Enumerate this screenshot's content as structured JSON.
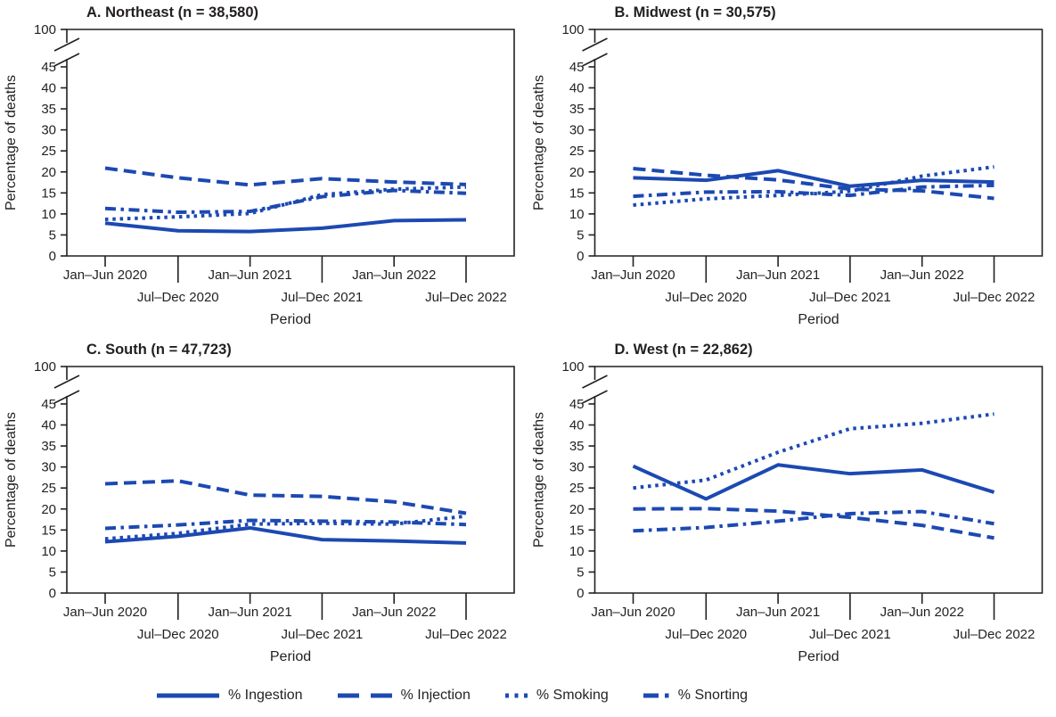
{
  "figure": {
    "line_color": "#1c49b2",
    "axis_color": "#231f20",
    "legend": [
      {
        "label": "% Ingestion",
        "style": "solid"
      },
      {
        "label": "% Injection",
        "style": "dashed"
      },
      {
        "label": "% Smoking",
        "style": "dotted"
      },
      {
        "label": "% Snorting",
        "style": "dashdot"
      }
    ]
  },
  "axis": {
    "ylabel": "Percentage of deaths",
    "xlabel": "Period",
    "yticks": [
      0,
      5,
      10,
      15,
      20,
      25,
      30,
      35,
      40,
      45
    ],
    "ybreak_top_label": 100,
    "y_axis_break": true
  },
  "chart_data": [
    {
      "type": "line",
      "title": "A. Northeast (n = 38,580)",
      "categories": [
        "Jan–Jun 2020",
        "Jul–Dec 2020",
        "Jan–Jun 2021",
        "Jul–Dec 2021",
        "Jan–Jun 2022",
        "Jul–Dec 2022"
      ],
      "ylim": [
        0,
        100
      ],
      "series": [
        {
          "name": "% Ingestion",
          "style": "solid",
          "values": [
            7.8,
            6.0,
            5.8,
            6.6,
            8.4,
            8.6
          ]
        },
        {
          "name": "% Injection",
          "style": "dashed",
          "values": [
            20.9,
            18.6,
            16.9,
            18.4,
            17.6,
            17.0
          ]
        },
        {
          "name": "% Smoking",
          "style": "dotted",
          "values": [
            8.7,
            9.3,
            10.1,
            14.6,
            15.9,
            16.4
          ]
        },
        {
          "name": "% Snorting",
          "style": "dashdot",
          "values": [
            11.3,
            10.4,
            10.6,
            14.1,
            15.6,
            14.9
          ]
        }
      ]
    },
    {
      "type": "line",
      "title": "B. Midwest  (n = 30,575)",
      "categories": [
        "Jan–Jun 2020",
        "Jul–Dec 2020",
        "Jan–Jun 2021",
        "Jul–Dec 2021",
        "Jan–Jun 2022",
        "Jul–Dec 2022"
      ],
      "ylim": [
        0,
        100
      ],
      "series": [
        {
          "name": "% Ingestion",
          "style": "solid",
          "values": [
            18.6,
            18.0,
            20.3,
            16.6,
            18.0,
            17.6
          ]
        },
        {
          "name": "% Injection",
          "style": "dashed",
          "values": [
            20.8,
            19.2,
            18.1,
            15.9,
            15.5,
            13.7
          ]
        },
        {
          "name": "% Smoking",
          "style": "dotted",
          "values": [
            12.1,
            13.6,
            14.4,
            15.4,
            19.0,
            21.2
          ]
        },
        {
          "name": "% Snorting",
          "style": "dashdot",
          "values": [
            14.2,
            15.2,
            15.3,
            14.4,
            16.4,
            16.8
          ]
        }
      ]
    },
    {
      "type": "line",
      "title": "C. South (n = 47,723)",
      "categories": [
        "Jan–Jun 2020",
        "Jul–Dec 2020",
        "Jan–Jun 2021",
        "Jul–Dec 2021",
        "Jan–Jun 2022",
        "Jul–Dec 2022"
      ],
      "ylim": [
        0,
        100
      ],
      "series": [
        {
          "name": "% Ingestion",
          "style": "solid",
          "values": [
            12.2,
            13.5,
            15.5,
            12.7,
            12.4,
            11.9
          ]
        },
        {
          "name": "% Injection",
          "style": "dashed",
          "values": [
            26.0,
            26.7,
            23.3,
            23.0,
            21.7,
            19.0
          ]
        },
        {
          "name": "% Smoking",
          "style": "dotted",
          "values": [
            12.9,
            14.2,
            16.4,
            16.6,
            16.4,
            18.3
          ]
        },
        {
          "name": "% Snorting",
          "style": "dashdot",
          "values": [
            15.4,
            16.2,
            17.3,
            17.1,
            16.9,
            16.3
          ]
        }
      ]
    },
    {
      "type": "line",
      "title": "D. West (n = 22,862)",
      "categories": [
        "Jan–Jun 2020",
        "Jul–Dec 2020",
        "Jan–Jun 2021",
        "Jul–Dec 2021",
        "Jan–Jun 2022",
        "Jul–Dec 2022"
      ],
      "ylim": [
        0,
        100
      ],
      "series": [
        {
          "name": "% Ingestion",
          "style": "solid",
          "values": [
            30.2,
            22.4,
            30.5,
            28.4,
            29.3,
            24.0
          ]
        },
        {
          "name": "% Injection",
          "style": "dashed",
          "values": [
            20.0,
            20.1,
            19.5,
            18.0,
            16.1,
            13.1
          ]
        },
        {
          "name": "% Smoking",
          "style": "dotted",
          "values": [
            25.0,
            26.9,
            33.5,
            39.1,
            40.4,
            42.6
          ]
        },
        {
          "name": "% Snorting",
          "style": "dashdot",
          "values": [
            14.8,
            15.6,
            17.1,
            18.9,
            19.4,
            16.5
          ]
        }
      ]
    }
  ]
}
